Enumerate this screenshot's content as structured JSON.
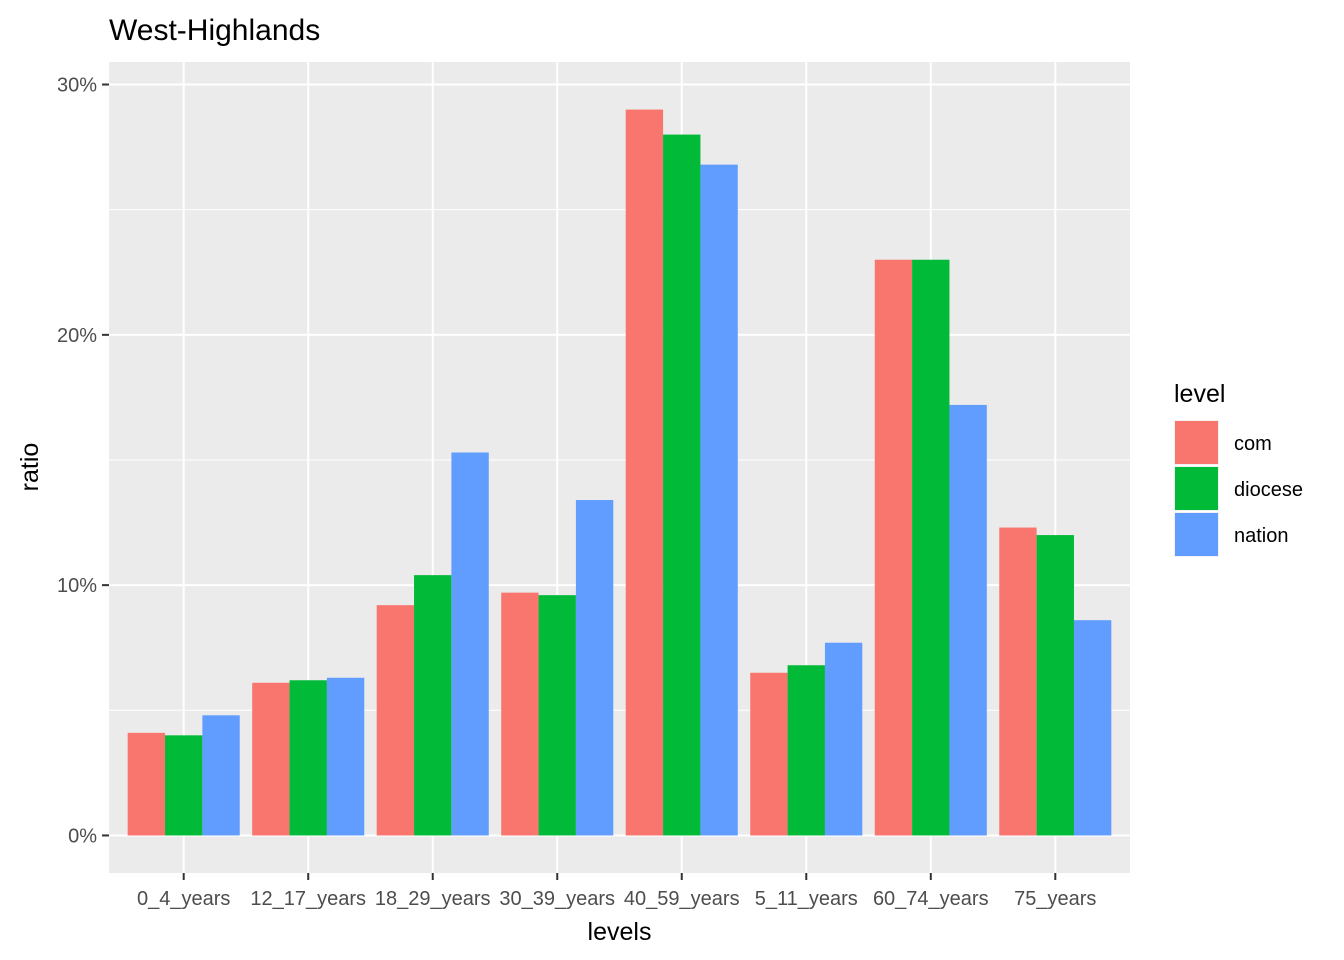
{
  "chart_data": {
    "type": "bar",
    "title": "West-Highlands",
    "xlabel": "levels",
    "ylabel": "ratio",
    "categories": [
      "0_4_years",
      "12_17_years",
      "18_29_years",
      "30_39_years",
      "40_59_years",
      "5_11_years",
      "60_74_years",
      "75_years"
    ],
    "series": [
      {
        "name": "com",
        "color": "#F8766D",
        "values": [
          4.1,
          6.1,
          9.2,
          9.7,
          29.0,
          6.5,
          23.0,
          12.3
        ]
      },
      {
        "name": "diocese",
        "color": "#00BA38",
        "values": [
          4.0,
          6.2,
          10.4,
          9.6,
          28.0,
          6.8,
          23.0,
          12.0
        ]
      },
      {
        "name": "nation",
        "color": "#619CFF",
        "values": [
          4.8,
          6.3,
          15.3,
          13.4,
          26.8,
          7.7,
          17.2,
          8.6
        ]
      }
    ],
    "ylim": [
      -1.5,
      30.9
    ],
    "y_ticks": [
      {
        "value": 0,
        "label": "0%"
      },
      {
        "value": 10,
        "label": "10%"
      },
      {
        "value": 20,
        "label": "20%"
      },
      {
        "value": 30,
        "label": "30%"
      }
    ],
    "legend": {
      "title": "level",
      "placement": "right"
    },
    "grid": true,
    "panel_background": "#EBEBEB"
  }
}
